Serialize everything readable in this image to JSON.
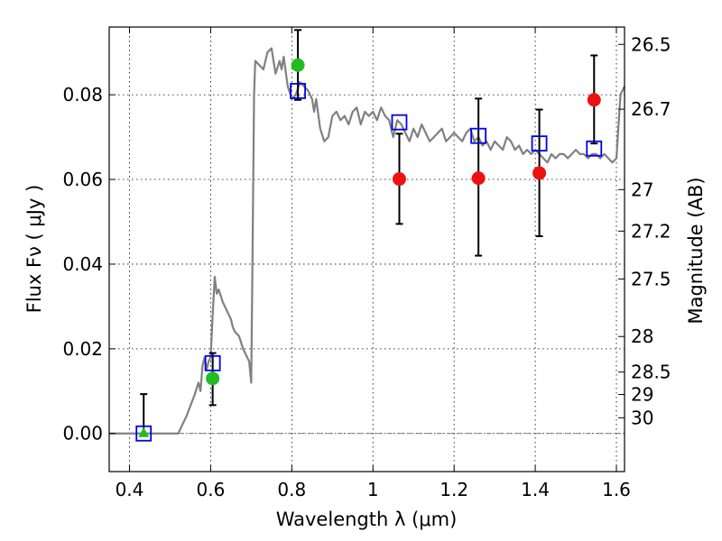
{
  "chart_data": {
    "type": "scatter",
    "title": "",
    "xlabel": "Wavelength  λ (μm)",
    "ylabel": "Flux  Fν  ( μJy )",
    "ylabel_right": "Magnitude (AB)",
    "xlim": [
      0.35,
      1.62
    ],
    "ylim": [
      -0.009,
      0.096
    ],
    "grid": true,
    "x_ticks": [
      0.4,
      0.6,
      0.8,
      1.0,
      1.2,
      1.4,
      1.6
    ],
    "x_tick_labels": [
      "0.4",
      "0.6",
      "0.8",
      "1",
      "1.2",
      "1.4",
      "1.6"
    ],
    "y_ticks": [
      0.0,
      0.02,
      0.04,
      0.06,
      0.08
    ],
    "y_tick_labels": [
      "0.00",
      "0.02",
      "0.04",
      "0.06",
      "0.08"
    ],
    "right_ticks": [
      {
        "flux": 0.0919,
        "label": "26.5"
      },
      {
        "flux": 0.0766,
        "label": "26.7"
      },
      {
        "flux": 0.0576,
        "label": "27"
      },
      {
        "flux": 0.0478,
        "label": "27.2"
      },
      {
        "flux": 0.0365,
        "label": "27.5"
      },
      {
        "flux": 0.0229,
        "label": "28"
      },
      {
        "flux": 0.0145,
        "label": "28.5"
      },
      {
        "flux": 0.0092,
        "label": "29"
      },
      {
        "flux": 0.0037,
        "label": "30"
      }
    ],
    "series": [
      {
        "type": "line",
        "color": "#808080",
        "x": [
          0.35,
          0.52,
          0.54,
          0.56,
          0.57,
          0.575,
          0.58,
          0.585,
          0.59,
          0.595,
          0.6,
          0.605,
          0.61,
          0.615,
          0.62,
          0.63,
          0.64,
          0.65,
          0.655,
          0.66,
          0.67,
          0.68,
          0.69,
          0.695,
          0.7,
          0.703,
          0.707,
          0.71,
          0.72,
          0.73,
          0.74,
          0.75,
          0.76,
          0.77,
          0.775,
          0.78,
          0.79,
          0.8,
          0.81,
          0.82,
          0.83,
          0.84,
          0.85,
          0.855,
          0.86,
          0.87,
          0.88,
          0.89,
          0.9,
          0.91,
          0.92,
          0.93,
          0.94,
          0.95,
          0.96,
          0.97,
          0.98,
          0.99,
          1.0,
          1.01,
          1.02,
          1.03,
          1.04,
          1.05,
          1.06,
          1.07,
          1.08,
          1.09,
          1.1,
          1.11,
          1.12,
          1.13,
          1.14,
          1.15,
          1.16,
          1.17,
          1.18,
          1.19,
          1.2,
          1.21,
          1.22,
          1.23,
          1.24,
          1.25,
          1.26,
          1.27,
          1.28,
          1.29,
          1.3,
          1.31,
          1.32,
          1.33,
          1.34,
          1.35,
          1.36,
          1.37,
          1.38,
          1.39,
          1.4,
          1.41,
          1.42,
          1.43,
          1.44,
          1.45,
          1.46,
          1.47,
          1.48,
          1.49,
          1.5,
          1.51,
          1.52,
          1.53,
          1.54,
          1.55,
          1.56,
          1.57,
          1.58,
          1.59,
          1.6,
          1.61,
          1.62
        ],
        "y": [
          0.0,
          0.0,
          0.004,
          0.009,
          0.012,
          0.01,
          0.016,
          0.018,
          0.015,
          0.017,
          0.018,
          0.028,
          0.037,
          0.033,
          0.034,
          0.031,
          0.029,
          0.027,
          0.025,
          0.024,
          0.023,
          0.02,
          0.018,
          0.017,
          0.012,
          0.04,
          0.08,
          0.088,
          0.087,
          0.086,
          0.09,
          0.091,
          0.085,
          0.088,
          0.086,
          0.089,
          0.082,
          0.079,
          0.08,
          0.083,
          0.082,
          0.081,
          0.079,
          0.076,
          0.079,
          0.072,
          0.069,
          0.07,
          0.075,
          0.076,
          0.074,
          0.075,
          0.073,
          0.076,
          0.077,
          0.073,
          0.076,
          0.075,
          0.076,
          0.074,
          0.077,
          0.075,
          0.074,
          0.07,
          0.074,
          0.073,
          0.071,
          0.069,
          0.072,
          0.07,
          0.073,
          0.071,
          0.069,
          0.07,
          0.071,
          0.072,
          0.069,
          0.07,
          0.071,
          0.07,
          0.069,
          0.071,
          0.072,
          0.069,
          0.07,
          0.068,
          0.069,
          0.067,
          0.069,
          0.068,
          0.067,
          0.07,
          0.069,
          0.067,
          0.068,
          0.066,
          0.067,
          0.066,
          0.067,
          0.066,
          0.065,
          0.064,
          0.066,
          0.065,
          0.066,
          0.066,
          0.065,
          0.066,
          0.067,
          0.066,
          0.066,
          0.065,
          0.066,
          0.066,
          0.065,
          0.066,
          0.065,
          0.064,
          0.065,
          0.08,
          0.082
        ]
      },
      {
        "type": "model_points",
        "marker": "square",
        "color": "#0000ee",
        "x": [
          0.435,
          0.605,
          0.815,
          1.065,
          1.26,
          1.41,
          1.545
        ],
        "y": [
          0.0,
          0.0166,
          0.0809,
          0.0735,
          0.0703,
          0.0685,
          0.0673
        ]
      },
      {
        "type": "detections",
        "marker": "circle",
        "color": "#22bb22",
        "x": [
          0.605,
          0.815
        ],
        "y": [
          0.013,
          0.087
        ],
        "yerr_low": [
          0.0063,
          0.0082
        ],
        "yerr_high": [
          0.006,
          0.0083
        ]
      },
      {
        "type": "upper_limit",
        "marker": "triangle",
        "color": "#22bb22",
        "x": [
          0.435
        ],
        "y": [
          0.0
        ],
        "yerr_low": [
          0.0
        ],
        "yerr_high": [
          0.0093
        ]
      },
      {
        "type": "observations",
        "marker": "circle",
        "color": "#ee1111",
        "x": [
          1.065,
          1.26,
          1.41,
          1.545
        ],
        "y": [
          0.0601,
          0.0603,
          0.0615,
          0.0788
        ],
        "yerr_low": [
          0.0106,
          0.0183,
          0.0149,
          0.0103
        ],
        "yerr_high": [
          0.0107,
          0.0188,
          0.015,
          0.0105
        ]
      }
    ]
  }
}
